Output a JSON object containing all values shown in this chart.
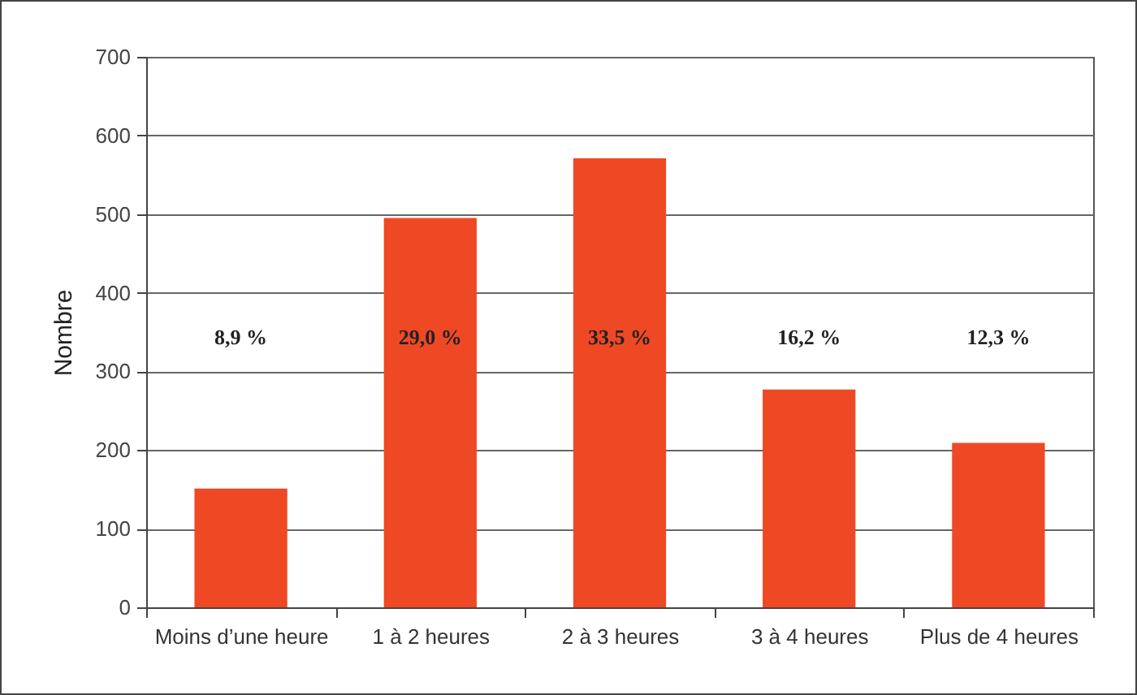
{
  "chart_data": {
    "type": "bar",
    "ylabel": "Nombre",
    "categories": [
      "Moins d’une heure",
      "1 à 2 heures",
      "2 à 3 heures",
      "3 à 4 heures",
      "Plus de 4 heures"
    ],
    "values": [
      151,
      495,
      571,
      277,
      209
    ],
    "color": "#ef4824",
    "ylim": [
      0,
      700
    ],
    "yticks": [
      0,
      100,
      200,
      300,
      400,
      500,
      600,
      700
    ],
    "grid": "y",
    "annotations": [
      "8,9 %",
      "29,0 %",
      "33,5 %",
      "16,2 %",
      "12,3 %"
    ]
  }
}
